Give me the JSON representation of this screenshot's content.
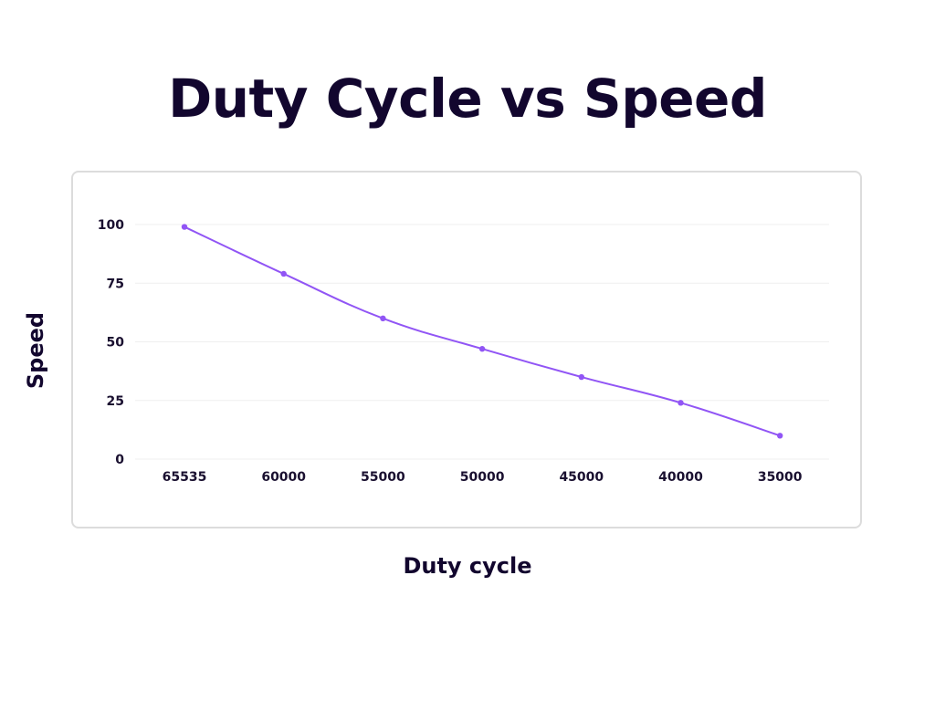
{
  "chart_data": {
    "type": "line",
    "title": "Duty Cycle vs Speed",
    "xlabel": "Duty cycle",
    "ylabel": "Speed",
    "categories": [
      "65535",
      "60000",
      "55000",
      "50000",
      "45000",
      "40000",
      "35000"
    ],
    "series": [
      {
        "values": [
          99,
          79,
          60,
          47,
          35,
          24,
          10
        ]
      }
    ],
    "ylim": [
      0,
      100
    ],
    "yticks": [
      0,
      25,
      50,
      75,
      100
    ],
    "grid": true,
    "line_color": "#9155f5",
    "marker": "circle"
  }
}
